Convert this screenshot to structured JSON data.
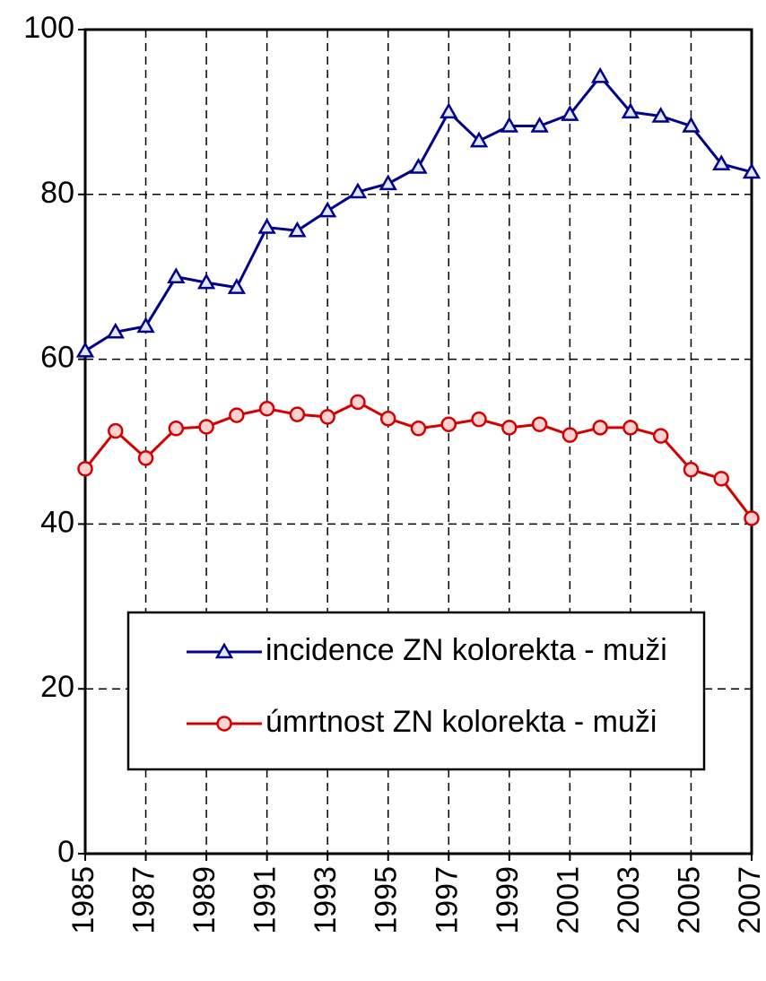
{
  "chart_data": {
    "type": "line",
    "x": [
      1985,
      1986,
      1987,
      1988,
      1989,
      1990,
      1991,
      1992,
      1993,
      1994,
      1995,
      1996,
      1997,
      1998,
      1999,
      2000,
      2001,
      2002,
      2003,
      2004,
      2005,
      2006,
      2007
    ],
    "series": [
      {
        "name": "incidence ZN kolorekta - muži",
        "color": "#00008b",
        "marker": "triangle",
        "values": [
          61,
          63.3,
          64,
          70,
          69.3,
          68.7,
          76,
          75.6,
          78,
          80.3,
          81.3,
          83.3,
          90,
          86.5,
          88.3,
          88.3,
          89.7,
          94.3,
          90,
          89.5,
          88.3,
          83.7,
          82.7
        ]
      },
      {
        "name": "úmrtnost ZN kolorekta - muži",
        "color": "#d40000",
        "marker": "circle",
        "values": [
          46.7,
          51.3,
          48,
          51.6,
          51.8,
          53.2,
          54,
          53.3,
          53,
          54.8,
          52.8,
          51.6,
          52.1,
          52.7,
          51.7,
          52.1,
          50.8,
          51.7,
          51.7,
          50.7,
          46.6,
          45.5,
          40.7
        ]
      }
    ],
    "xlim": [
      1985,
      2007
    ],
    "xticks": [
      1985,
      1987,
      1989,
      1991,
      1993,
      1995,
      1997,
      1999,
      2001,
      2003,
      2005,
      2007
    ],
    "ylim": [
      0,
      100
    ],
    "yticks": [
      0,
      20,
      40,
      60,
      80,
      100
    ],
    "grid": true,
    "legend": "lower center"
  }
}
